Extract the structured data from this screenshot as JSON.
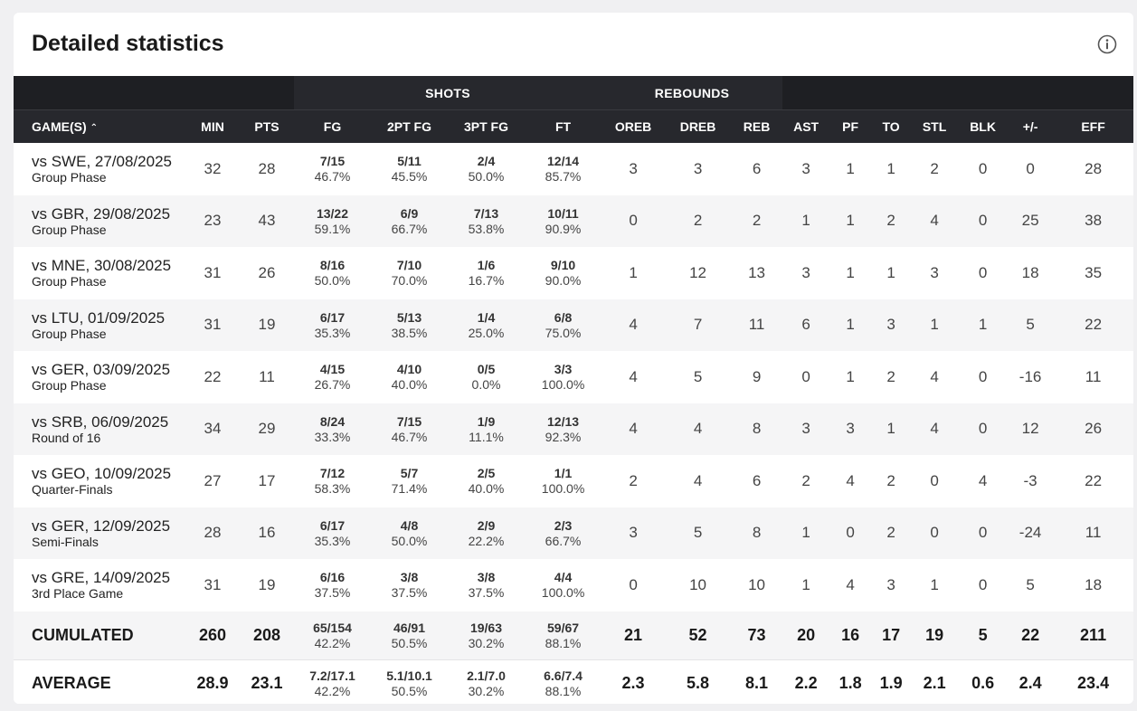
{
  "title": "Detailed statistics",
  "groups": {
    "shots": "SHOTS",
    "rebounds": "REBOUNDS"
  },
  "columns": {
    "game": "GAME(S)",
    "min": "MIN",
    "pts": "PTS",
    "fg": "FG",
    "fg2": "2PT FG",
    "fg3": "3PT FG",
    "ft": "FT",
    "oreb": "OREB",
    "dreb": "DREB",
    "reb": "REB",
    "ast": "AST",
    "pf": "PF",
    "to": "TO",
    "stl": "STL",
    "blk": "BLK",
    "pm": "+/-",
    "eff": "EFF"
  },
  "rows": [
    {
      "opp": "vs SWE, 27/08/2025",
      "phase": "Group Phase",
      "min": "32",
      "pts": "28",
      "fg_m": "7/15",
      "fg_p": "46.7%",
      "fg2_m": "5/11",
      "fg2_p": "45.5%",
      "fg3_m": "2/4",
      "fg3_p": "50.0%",
      "ft_m": "12/14",
      "ft_p": "85.7%",
      "oreb": "3",
      "dreb": "3",
      "reb": "6",
      "ast": "3",
      "pf": "1",
      "to": "1",
      "stl": "2",
      "blk": "0",
      "pm": "0",
      "eff": "28"
    },
    {
      "opp": "vs GBR, 29/08/2025",
      "phase": "Group Phase",
      "min": "23",
      "pts": "43",
      "fg_m": "13/22",
      "fg_p": "59.1%",
      "fg2_m": "6/9",
      "fg2_p": "66.7%",
      "fg3_m": "7/13",
      "fg3_p": "53.8%",
      "ft_m": "10/11",
      "ft_p": "90.9%",
      "oreb": "0",
      "dreb": "2",
      "reb": "2",
      "ast": "1",
      "pf": "1",
      "to": "2",
      "stl": "4",
      "blk": "0",
      "pm": "25",
      "eff": "38"
    },
    {
      "opp": "vs MNE, 30/08/2025",
      "phase": "Group Phase",
      "min": "31",
      "pts": "26",
      "fg_m": "8/16",
      "fg_p": "50.0%",
      "fg2_m": "7/10",
      "fg2_p": "70.0%",
      "fg3_m": "1/6",
      "fg3_p": "16.7%",
      "ft_m": "9/10",
      "ft_p": "90.0%",
      "oreb": "1",
      "dreb": "12",
      "reb": "13",
      "ast": "3",
      "pf": "1",
      "to": "1",
      "stl": "3",
      "blk": "0",
      "pm": "18",
      "eff": "35"
    },
    {
      "opp": "vs LTU, 01/09/2025",
      "phase": "Group Phase",
      "min": "31",
      "pts": "19",
      "fg_m": "6/17",
      "fg_p": "35.3%",
      "fg2_m": "5/13",
      "fg2_p": "38.5%",
      "fg3_m": "1/4",
      "fg3_p": "25.0%",
      "ft_m": "6/8",
      "ft_p": "75.0%",
      "oreb": "4",
      "dreb": "7",
      "reb": "11",
      "ast": "6",
      "pf": "1",
      "to": "3",
      "stl": "1",
      "blk": "1",
      "pm": "5",
      "eff": "22"
    },
    {
      "opp": "vs GER, 03/09/2025",
      "phase": "Group Phase",
      "min": "22",
      "pts": "11",
      "fg_m": "4/15",
      "fg_p": "26.7%",
      "fg2_m": "4/10",
      "fg2_p": "40.0%",
      "fg3_m": "0/5",
      "fg3_p": "0.0%",
      "ft_m": "3/3",
      "ft_p": "100.0%",
      "oreb": "4",
      "dreb": "5",
      "reb": "9",
      "ast": "0",
      "pf": "1",
      "to": "2",
      "stl": "4",
      "blk": "0",
      "pm": "-16",
      "eff": "11"
    },
    {
      "opp": "vs SRB, 06/09/2025",
      "phase": "Round of 16",
      "min": "34",
      "pts": "29",
      "fg_m": "8/24",
      "fg_p": "33.3%",
      "fg2_m": "7/15",
      "fg2_p": "46.7%",
      "fg3_m": "1/9",
      "fg3_p": "11.1%",
      "ft_m": "12/13",
      "ft_p": "92.3%",
      "oreb": "4",
      "dreb": "4",
      "reb": "8",
      "ast": "3",
      "pf": "3",
      "to": "1",
      "stl": "4",
      "blk": "0",
      "pm": "12",
      "eff": "26"
    },
    {
      "opp": "vs GEO, 10/09/2025",
      "phase": "Quarter-Finals",
      "min": "27",
      "pts": "17",
      "fg_m": "7/12",
      "fg_p": "58.3%",
      "fg2_m": "5/7",
      "fg2_p": "71.4%",
      "fg3_m": "2/5",
      "fg3_p": "40.0%",
      "ft_m": "1/1",
      "ft_p": "100.0%",
      "oreb": "2",
      "dreb": "4",
      "reb": "6",
      "ast": "2",
      "pf": "4",
      "to": "2",
      "stl": "0",
      "blk": "4",
      "pm": "-3",
      "eff": "22"
    },
    {
      "opp": "vs GER, 12/09/2025",
      "phase": "Semi-Finals",
      "min": "28",
      "pts": "16",
      "fg_m": "6/17",
      "fg_p": "35.3%",
      "fg2_m": "4/8",
      "fg2_p": "50.0%",
      "fg3_m": "2/9",
      "fg3_p": "22.2%",
      "ft_m": "2/3",
      "ft_p": "66.7%",
      "oreb": "3",
      "dreb": "5",
      "reb": "8",
      "ast": "1",
      "pf": "0",
      "to": "2",
      "stl": "0",
      "blk": "0",
      "pm": "-24",
      "eff": "11"
    },
    {
      "opp": "vs GRE, 14/09/2025",
      "phase": "3rd Place Game",
      "min": "31",
      "pts": "19",
      "fg_m": "6/16",
      "fg_p": "37.5%",
      "fg2_m": "3/8",
      "fg2_p": "37.5%",
      "fg3_m": "3/8",
      "fg3_p": "37.5%",
      "ft_m": "4/4",
      "ft_p": "100.0%",
      "oreb": "0",
      "dreb": "10",
      "reb": "10",
      "ast": "1",
      "pf": "4",
      "to": "3",
      "stl": "1",
      "blk": "0",
      "pm": "5",
      "eff": "18"
    }
  ],
  "cumulated": {
    "label": "CUMULATED",
    "min": "260",
    "pts": "208",
    "fg_m": "65/154",
    "fg_p": "42.2%",
    "fg2_m": "46/91",
    "fg2_p": "50.5%",
    "fg3_m": "19/63",
    "fg3_p": "30.2%",
    "ft_m": "59/67",
    "ft_p": "88.1%",
    "oreb": "21",
    "dreb": "52",
    "reb": "73",
    "ast": "20",
    "pf": "16",
    "to": "17",
    "stl": "19",
    "blk": "5",
    "pm": "22",
    "eff": "211"
  },
  "average": {
    "label": "AVERAGE",
    "min": "28.9",
    "pts": "23.1",
    "fg_m": "7.2/17.1",
    "fg_p": "42.2%",
    "fg2_m": "5.1/10.1",
    "fg2_p": "50.5%",
    "fg3_m": "2.1/7.0",
    "fg3_p": "30.2%",
    "ft_m": "6.6/7.4",
    "ft_p": "88.1%",
    "oreb": "2.3",
    "dreb": "5.8",
    "reb": "8.1",
    "ast": "2.2",
    "pf": "1.8",
    "to": "1.9",
    "stl": "2.1",
    "blk": "0.6",
    "pm": "2.4",
    "eff": "23.4"
  },
  "icons": {
    "info": "info-icon",
    "sort": "sort-asc-icon"
  }
}
